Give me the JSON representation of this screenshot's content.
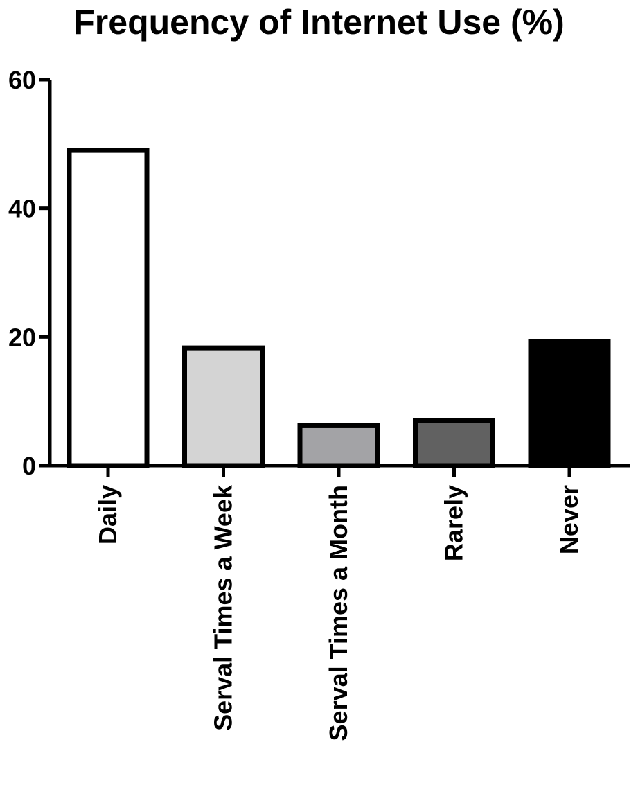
{
  "chart_data": {
    "type": "bar",
    "title": "Frequency of Internet Use (%)",
    "categories": [
      "Daily",
      "Serval Times a Week",
      "Serval Times a Month",
      "Rarely",
      "Never"
    ],
    "values": [
      49,
      18.3,
      6.2,
      7,
      19.3
    ],
    "colors": [
      "#ffffff",
      "#d4d4d4",
      "#a3a3a6",
      "#616161",
      "#000000"
    ],
    "ylim": [
      0,
      60
    ],
    "yticks": [
      "0",
      "20",
      "40",
      "60"
    ],
    "xlabel": "",
    "ylabel": "",
    "grid": false,
    "legend": "none"
  }
}
